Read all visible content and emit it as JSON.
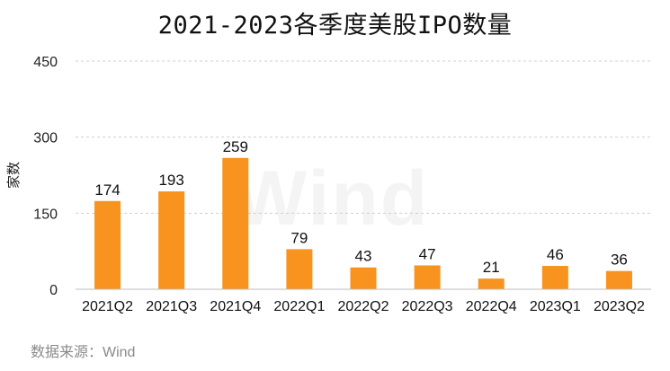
{
  "chart_data": {
    "type": "bar",
    "title": "2021-2023各季度美股IPO数量",
    "ylabel": "家数",
    "categories": [
      "2021Q2",
      "2021Q3",
      "2021Q4",
      "2022Q1",
      "2022Q2",
      "2022Q3",
      "2022Q4",
      "2023Q1",
      "2023Q2"
    ],
    "values": [
      174,
      193,
      259,
      79,
      43,
      47,
      21,
      46,
      36
    ],
    "ylim": [
      0,
      450
    ],
    "yticks": [
      0,
      150,
      300,
      450
    ],
    "grid": true,
    "bar_color": "#F7931E",
    "source": "数据来源：Wind",
    "watermark": "Wind"
  }
}
